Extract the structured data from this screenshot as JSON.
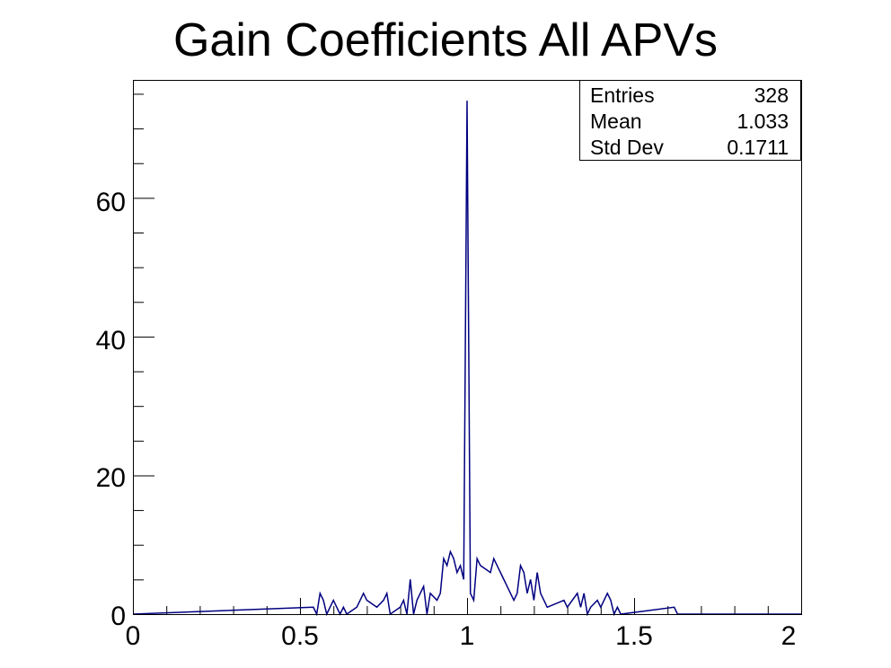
{
  "chart_data": {
    "type": "bar",
    "subtype": "histogram-step",
    "title": "Gain Coefficients All APVs",
    "xlabel": "",
    "ylabel": "",
    "xlim": [
      0,
      2
    ],
    "ylim": [
      0,
      77
    ],
    "x_ticks": [
      "0",
      "0.5",
      "1",
      "1.5",
      "2"
    ],
    "y_ticks": [
      "0",
      "20",
      "40",
      "60"
    ],
    "grid": false,
    "line_color": "#000080",
    "stats_box": {
      "position": "top-right",
      "rows": [
        {
          "label": "Entries",
          "value": "328"
        },
        {
          "label": "Mean",
          "value": "1.033"
        },
        {
          "label": "Std Dev",
          "value": "0.1711"
        }
      ]
    },
    "bins": {
      "low": 0,
      "width": 0.01,
      "count": 200,
      "nonzero": {
        "54": 1,
        "56": 3,
        "57": 2,
        "60": 2,
        "61": 1,
        "63": 1,
        "67": 1,
        "68": 2,
        "69": 3,
        "70": 2,
        "71": 2,
        "72": 2,
        "73": 1,
        "74": 1,
        "75": 2,
        "76": 3,
        "80": 1,
        "81": 2,
        "83": 5,
        "85": 2,
        "86": 2,
        "87": 4,
        "89": 3,
        "90": 3,
        "91": 2,
        "92": 3,
        "93": 8,
        "94": 7,
        "95": 9,
        "96": 8,
        "97": 6,
        "98": 7,
        "99": 5,
        "100": 74,
        "101": 3,
        "102": 2,
        "103": 8,
        "104": 7,
        "105": 7,
        "106": 7,
        "107": 6,
        "108": 8,
        "109": 7,
        "110": 6,
        "111": 5,
        "112": 4,
        "113": 3,
        "114": 2,
        "115": 3,
        "116": 7,
        "117": 6,
        "118": 3,
        "119": 5,
        "120": 2,
        "121": 6,
        "122": 3,
        "123": 2,
        "124": 1,
        "125": 1,
        "126": 1,
        "127": 1,
        "128": 1,
        "129": 2,
        "130": 1,
        "131": 1,
        "132": 1,
        "133": 3,
        "134": 1,
        "135": 3,
        "137": 1,
        "138": 1,
        "139": 2,
        "140": 1,
        "141": 2,
        "142": 3,
        "143": 2,
        "145": 1,
        "162": 1
      }
    }
  }
}
